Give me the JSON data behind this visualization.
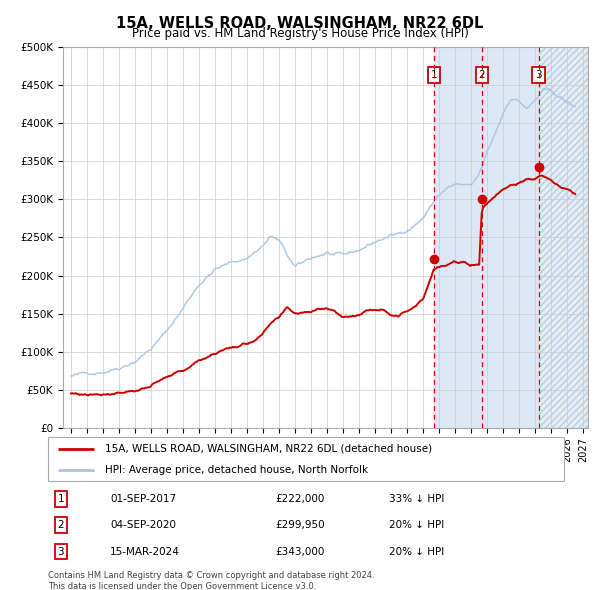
{
  "title": "15A, WELLS ROAD, WALSINGHAM, NR22 6DL",
  "subtitle": "Price paid vs. HM Land Registry's House Price Index (HPI)",
  "legend_property": "15A, WELLS ROAD, WALSINGHAM, NR22 6DL (detached house)",
  "legend_hpi": "HPI: Average price, detached house, North Norfolk",
  "footer": "Contains HM Land Registry data © Crown copyright and database right 2024.\nThis data is licensed under the Open Government Licence v3.0.",
  "transactions": [
    {
      "num": 1,
      "date": "01-SEP-2017",
      "price": "£222,000",
      "pct": "33% ↓ HPI",
      "x_year": 2017.67,
      "y_val": 222000
    },
    {
      "num": 2,
      "date": "04-SEP-2020",
      "price": "£299,950",
      "pct": "20% ↓ HPI",
      "x_year": 2020.67,
      "y_val": 299950
    },
    {
      "num": 3,
      "date": "15-MAR-2024",
      "price": "£343,000",
      "pct": "20% ↓ HPI",
      "x_year": 2024.21,
      "y_val": 343000
    }
  ],
  "ylim": [
    0,
    500000
  ],
  "xlim_start": 1994.5,
  "xlim_end": 2027.3,
  "yticks": [
    0,
    50000,
    100000,
    150000,
    200000,
    250000,
    300000,
    350000,
    400000,
    450000,
    500000
  ],
  "ytick_labels": [
    "£0",
    "£50K",
    "£100K",
    "£150K",
    "£200K",
    "£250K",
    "£300K",
    "£350K",
    "£400K",
    "£450K",
    "£500K"
  ],
  "hpi_color": "#a8c4e0",
  "property_color": "#cc0000",
  "grid_color": "#cccccc",
  "bg_color": "#ffffff",
  "shaded_region_color": "#dce8f5",
  "hatch_region_color": "#e8eef5",
  "transaction_dot_color": "#cc0000",
  "transaction_line_color": "#dd0000",
  "box_outline_color": "#cc0000",
  "hpi_waypoints_x": [
    1995.0,
    1996.0,
    1997.0,
    1998.0,
    1999.0,
    2000.0,
    2001.0,
    2002.0,
    2003.0,
    2004.0,
    2005.0,
    2006.0,
    2007.0,
    2007.5,
    2008.0,
    2008.5,
    2009.0,
    2009.5,
    2010.0,
    2010.5,
    2011.0,
    2011.5,
    2012.0,
    2012.5,
    2013.0,
    2013.5,
    2014.0,
    2014.5,
    2015.0,
    2015.5,
    2016.0,
    2016.5,
    2017.0,
    2017.5,
    2018.0,
    2018.5,
    2019.0,
    2019.5,
    2020.0,
    2020.5,
    2021.0,
    2021.5,
    2022.0,
    2022.5,
    2023.0,
    2023.5,
    2024.0,
    2024.5,
    2025.0,
    2025.5,
    2026.0,
    2026.5
  ],
  "hpi_waypoints_y": [
    68000,
    70000,
    76000,
    84000,
    96000,
    113000,
    135000,
    165000,
    198000,
    218000,
    225000,
    232000,
    250000,
    262000,
    255000,
    235000,
    218000,
    222000,
    228000,
    232000,
    236000,
    232000,
    228000,
    230000,
    234000,
    240000,
    245000,
    250000,
    253000,
    255000,
    262000,
    270000,
    280000,
    295000,
    310000,
    318000,
    322000,
    320000,
    316000,
    330000,
    358000,
    382000,
    410000,
    432000,
    428000,
    418000,
    428000,
    440000,
    436000,
    430000,
    422000,
    415000
  ],
  "prop_waypoints_x": [
    1995.0,
    1996.0,
    1997.0,
    1998.0,
    1999.0,
    2000.0,
    2001.0,
    2002.0,
    2003.0,
    2004.0,
    2005.0,
    2006.0,
    2007.0,
    2007.5,
    2008.0,
    2008.5,
    2009.0,
    2009.5,
    2010.0,
    2010.5,
    2011.0,
    2011.5,
    2012.0,
    2012.5,
    2013.0,
    2013.5,
    2014.0,
    2014.5,
    2015.0,
    2015.5,
    2016.0,
    2016.5,
    2017.0,
    2017.67,
    2018.0,
    2018.5,
    2019.0,
    2019.5,
    2020.0,
    2020.5,
    2020.67,
    2021.0,
    2021.5,
    2022.0,
    2022.5,
    2023.0,
    2023.5,
    2024.0,
    2024.21,
    2024.5,
    2025.0,
    2025.5,
    2026.0,
    2026.5
  ],
  "prop_waypoints_y": [
    45000,
    44000,
    47000,
    52000,
    56000,
    62000,
    70000,
    78000,
    90000,
    102000,
    110000,
    114000,
    128000,
    140000,
    145000,
    155000,
    148000,
    150000,
    152000,
    158000,
    160000,
    155000,
    148000,
    150000,
    153000,
    157000,
    160000,
    162000,
    158000,
    156000,
    162000,
    170000,
    182000,
    222000,
    224000,
    226000,
    228000,
    228000,
    226000,
    228000,
    299950,
    308000,
    318000,
    328000,
    335000,
    338000,
    340000,
    341000,
    343000,
    344000,
    338000,
    330000,
    325000,
    318000
  ]
}
